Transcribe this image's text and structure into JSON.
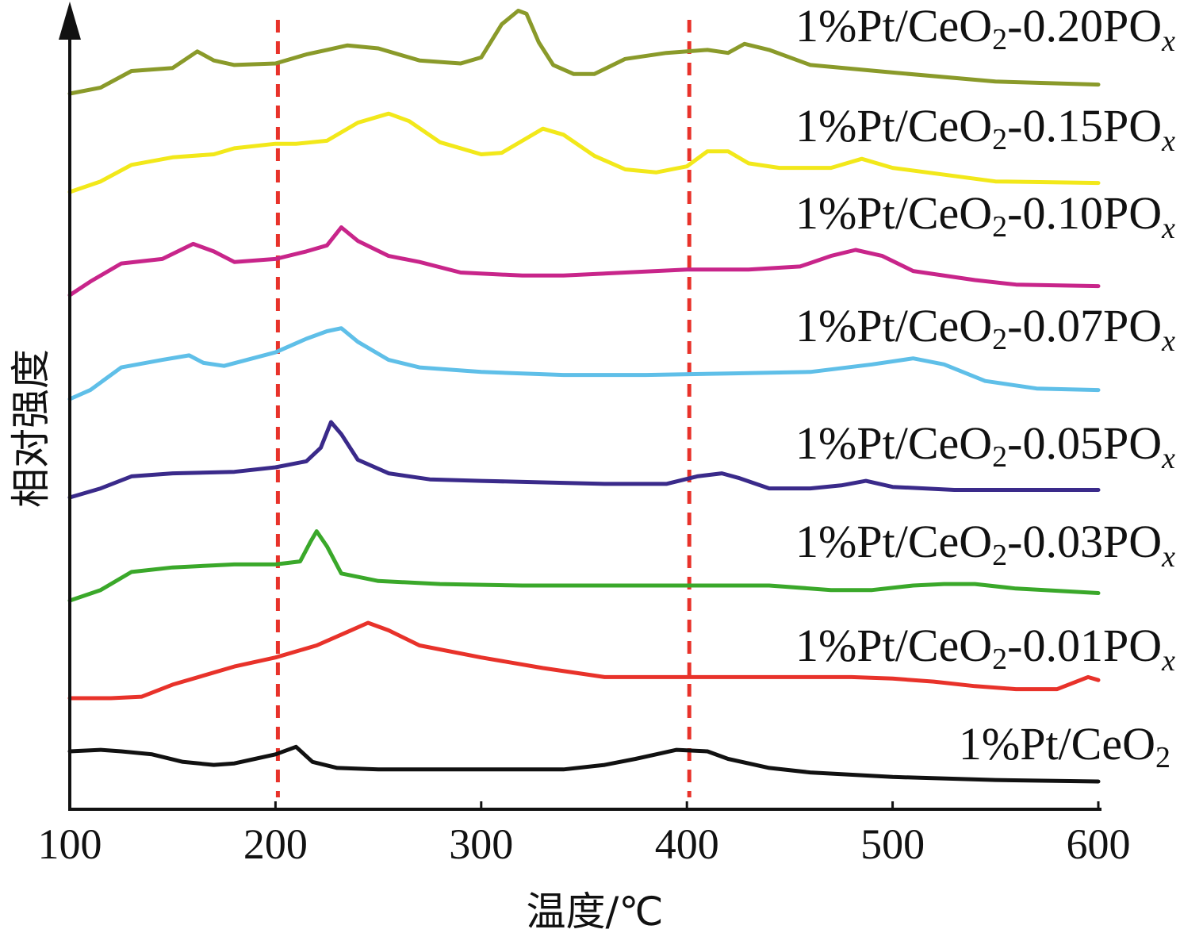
{
  "chart_data": {
    "type": "line",
    "xlabel": "温度/℃",
    "ylabel": "相对强度",
    "xlim": [
      100,
      600
    ],
    "x_ticks": [
      "100",
      "200",
      "300",
      "400",
      "500",
      "600"
    ],
    "y_ticks": [],
    "grid": false,
    "reference_lines_x": [
      200,
      400
    ],
    "reference_line_color": "#e8322a",
    "axis_color": "#111111",
    "y_axis_arrow": true,
    "legend_placement": "inline labels above each curve, right-aligned",
    "series": [
      {
        "name": "1%Pt/CeO2-0.20POx",
        "label_parts": [
          "1%Pt/CeO",
          "2",
          "-0.20PO",
          "x"
        ],
        "color": "#8a9a2a",
        "x": [
          100,
          115,
          130,
          150,
          162,
          170,
          180,
          200,
          215,
          225,
          235,
          250,
          270,
          290,
          300,
          310,
          318,
          322,
          328,
          335,
          345,
          355,
          370,
          390,
          410,
          420,
          428,
          440,
          460,
          500,
          550,
          600
        ],
        "y": [
          0.0,
          0.4,
          1.5,
          1.7,
          2.8,
          2.2,
          1.9,
          2.0,
          2.6,
          2.9,
          3.2,
          3.0,
          2.2,
          2.0,
          2.4,
          4.6,
          5.5,
          5.3,
          3.4,
          1.9,
          1.3,
          1.3,
          2.3,
          2.7,
          2.9,
          2.7,
          3.3,
          2.9,
          1.9,
          1.4,
          0.8,
          0.6
        ]
      },
      {
        "name": "1%Pt/CeO2-0.15POx",
        "label_parts": [
          "1%Pt/CeO",
          "2",
          "-0.15PO",
          "x"
        ],
        "color": "#f2e81a",
        "x": [
          100,
          115,
          130,
          150,
          170,
          180,
          200,
          210,
          225,
          240,
          255,
          265,
          280,
          300,
          310,
          320,
          330,
          340,
          355,
          370,
          385,
          400,
          410,
          420,
          430,
          445,
          470,
          485,
          500,
          550,
          600
        ],
        "y": [
          0.0,
          0.7,
          1.8,
          2.3,
          2.5,
          2.9,
          3.2,
          3.2,
          3.4,
          4.6,
          5.2,
          4.7,
          3.3,
          2.5,
          2.6,
          3.4,
          4.2,
          3.8,
          2.4,
          1.5,
          1.3,
          1.7,
          2.7,
          2.7,
          1.9,
          1.6,
          1.6,
          2.2,
          1.6,
          0.7,
          0.6
        ]
      },
      {
        "name": "1%Pt/CeO2-0.10POx",
        "label_parts": [
          "1%Pt/CeO",
          "2",
          "-0.10PO",
          "x"
        ],
        "color": "#c8258a",
        "x": [
          100,
          110,
          125,
          145,
          160,
          170,
          180,
          200,
          215,
          225,
          232,
          240,
          255,
          270,
          290,
          320,
          340,
          370,
          400,
          430,
          455,
          470,
          482,
          495,
          510,
          540,
          560,
          600
        ],
        "y": [
          0.0,
          0.9,
          2.1,
          2.4,
          3.4,
          2.9,
          2.2,
          2.4,
          2.9,
          3.3,
          4.5,
          3.6,
          2.6,
          2.2,
          1.5,
          1.3,
          1.3,
          1.5,
          1.7,
          1.7,
          1.9,
          2.6,
          3.0,
          2.6,
          1.6,
          1.0,
          0.7,
          0.6
        ]
      },
      {
        "name": "1%Pt/CeO2-0.07POx",
        "label_parts": [
          "1%Pt/CeO",
          "2",
          "-0.07PO",
          "x"
        ],
        "color": "#5fbfe8",
        "x": [
          100,
          110,
          125,
          145,
          158,
          165,
          175,
          200,
          215,
          225,
          232,
          240,
          255,
          270,
          300,
          340,
          380,
          420,
          460,
          490,
          510,
          525,
          545,
          570,
          600
        ],
        "y": [
          0.0,
          0.6,
          2.1,
          2.6,
          2.9,
          2.4,
          2.2,
          3.1,
          4.0,
          4.5,
          4.7,
          3.8,
          2.6,
          2.1,
          1.8,
          1.6,
          1.6,
          1.7,
          1.8,
          2.3,
          2.7,
          2.3,
          1.2,
          0.7,
          0.6
        ]
      },
      {
        "name": "1%Pt/CeO2-0.05POx",
        "label_parts": [
          "1%Pt/CeO",
          "2",
          "-0.05PO",
          "x"
        ],
        "color": "#3a2a8a",
        "x": [
          100,
          115,
          130,
          150,
          180,
          200,
          215,
          222,
          227,
          232,
          240,
          255,
          275,
          300,
          330,
          360,
          390,
          405,
          417,
          425,
          440,
          460,
          475,
          487,
          500,
          530,
          560,
          600
        ],
        "y": [
          0.0,
          0.6,
          1.4,
          1.6,
          1.7,
          2.0,
          2.4,
          3.3,
          5.0,
          4.2,
          2.5,
          1.6,
          1.2,
          1.1,
          1.0,
          0.9,
          0.9,
          1.4,
          1.6,
          1.3,
          0.6,
          0.6,
          0.8,
          1.1,
          0.7,
          0.5,
          0.5,
          0.5
        ]
      },
      {
        "name": "1%Pt/CeO2-0.03POx",
        "label_parts": [
          "1%Pt/CeO",
          "2",
          "-0.03PO",
          "x"
        ],
        "color": "#3aa82a",
        "x": [
          100,
          115,
          130,
          150,
          180,
          200,
          212,
          217,
          220,
          225,
          232,
          250,
          280,
          320,
          360,
          400,
          440,
          470,
          490,
          510,
          525,
          540,
          560,
          600
        ],
        "y": [
          0.0,
          0.7,
          1.9,
          2.2,
          2.4,
          2.4,
          2.6,
          3.9,
          4.6,
          3.6,
          1.8,
          1.3,
          1.1,
          1.0,
          1.0,
          1.0,
          1.0,
          0.7,
          0.7,
          1.0,
          1.1,
          1.1,
          0.8,
          0.5
        ]
      },
      {
        "name": "1%Pt/CeO2-0.01POx",
        "label_parts": [
          "1%Pt/CeO",
          "2",
          "-0.01PO",
          "x"
        ],
        "color": "#e8322a",
        "x": [
          100,
          120,
          135,
          150,
          180,
          200,
          220,
          235,
          245,
          255,
          270,
          300,
          330,
          360,
          390,
          420,
          450,
          480,
          500,
          520,
          540,
          560,
          580,
          595,
          600
        ],
        "y": [
          0.0,
          0.0,
          0.1,
          0.9,
          2.1,
          2.7,
          3.5,
          4.4,
          5.0,
          4.5,
          3.5,
          2.7,
          2.0,
          1.4,
          1.4,
          1.4,
          1.4,
          1.4,
          1.3,
          1.1,
          0.8,
          0.6,
          0.6,
          1.4,
          1.2
        ]
      },
      {
        "name": "1%Pt/CeO2",
        "label_parts": [
          "1%Pt/CeO",
          "2",
          "",
          ""
        ],
        "color": "#111111",
        "x": [
          100,
          115,
          125,
          140,
          155,
          170,
          180,
          190,
          200,
          210,
          218,
          230,
          250,
          280,
          300,
          340,
          360,
          375,
          385,
          395,
          410,
          420,
          440,
          460,
          500,
          550,
          600
        ],
        "y": [
          2.0,
          2.1,
          2.0,
          1.8,
          1.3,
          1.1,
          1.2,
          1.5,
          1.8,
          2.3,
          1.3,
          0.9,
          0.8,
          0.8,
          0.8,
          0.8,
          1.1,
          1.5,
          1.8,
          2.1,
          2.0,
          1.5,
          0.9,
          0.6,
          0.3,
          0.1,
          0.0
        ]
      }
    ]
  }
}
